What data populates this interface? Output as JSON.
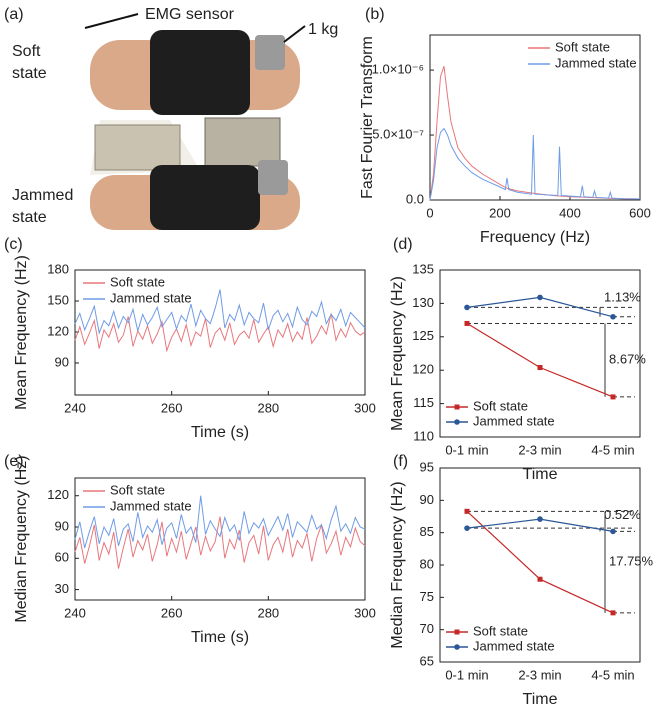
{
  "panel_a": {
    "label": "(a)",
    "sensor": "EMG sensor",
    "weight": "1 kg",
    "top_state": [
      "Soft",
      "state"
    ],
    "bottom_state": [
      "Jammed",
      "state"
    ]
  },
  "chart_data": [
    {
      "type": "line",
      "label": "(b)",
      "x_label": "Frequency (Hz)",
      "y_label": "Fast Fourier Transform",
      "xlim": [
        0,
        600
      ],
      "xticks": [
        0,
        200,
        400,
        600
      ],
      "ylim": [
        0,
        1.27e-06
      ],
      "yticks": [
        {
          "value": 0,
          "label": "0.0"
        },
        {
          "value": 5e-07,
          "label": "5.0×10⁻⁷"
        },
        {
          "value": 1e-06,
          "label": "1.0×10⁻⁶"
        }
      ],
      "legend": "upper right",
      "series": [
        {
          "name": "Soft state",
          "color": "#e8777c",
          "x": [
            0,
            10,
            20,
            30,
            40,
            50,
            60,
            80,
            100,
            120,
            150,
            200,
            220,
            250,
            300,
            350,
            400,
            450,
            500,
            550,
            600
          ],
          "values": [
            0,
            2e-07,
            6e-07,
            9.5e-07,
            1.03e-06,
            8e-07,
            6e-07,
            4e-07,
            3.2e-07,
            2.6e-07,
            2e-07,
            1.2e-07,
            9e-08,
            7e-08,
            5e-08,
            3.5e-08,
            2.5e-08,
            2e-08,
            1.5e-08,
            1e-08,
            8e-09
          ]
        },
        {
          "name": "Jammed state",
          "color": "#6f9ce6",
          "x": [
            0,
            10,
            20,
            30,
            40,
            50,
            60,
            80,
            100,
            120,
            150,
            200,
            215,
            220,
            225,
            250,
            290,
            295,
            300,
            365,
            370,
            375,
            430,
            435,
            440,
            465,
            470,
            475,
            510,
            515,
            520,
            550,
            600
          ],
          "values": [
            0,
            1.5e-07,
            4e-07,
            5.2e-07,
            5.5e-07,
            5e-07,
            4.2e-07,
            3.2e-07,
            2.6e-07,
            2.1e-07,
            1.6e-07,
            1e-07,
            8e-08,
            1.7e-07,
            8e-08,
            6e-08,
            4.5e-08,
            5e-07,
            4.5e-08,
            3.5e-08,
            4.1e-07,
            3.5e-08,
            2.5e-08,
            1.1e-07,
            2.5e-08,
            2e-08,
            7e-08,
            2e-08,
            1.5e-08,
            6e-08,
            1.5e-08,
            1e-08,
            8e-09
          ]
        }
      ]
    },
    {
      "type": "line",
      "label": "(c)",
      "x_label": "Time (s)",
      "y_label": "Mean Frequency (Hz)",
      "xlim": [
        240,
        300
      ],
      "xticks": [
        240,
        260,
        280,
        300
      ],
      "ylim": [
        59,
        180
      ],
      "yticks": [
        90,
        120,
        150,
        180
      ],
      "legend": "upper left",
      "x": [
        240,
        241,
        242,
        243,
        244,
        245,
        246,
        247,
        248,
        249,
        250,
        251,
        252,
        253,
        254,
        255,
        256,
        257,
        258,
        259,
        260,
        261,
        262,
        263,
        264,
        265,
        266,
        267,
        268,
        269,
        270,
        271,
        272,
        273,
        274,
        275,
        276,
        277,
        278,
        279,
        280,
        281,
        282,
        283,
        284,
        285,
        286,
        287,
        288,
        289,
        290,
        291,
        292,
        293,
        294,
        295,
        296,
        297,
        298,
        299,
        300
      ],
      "series": [
        {
          "name": "Soft state",
          "color": "#e8777c",
          "values": [
            112,
            125,
            108,
            119,
            131,
            104,
            122,
            115,
            128,
            110,
            117,
            135,
            106,
            121,
            113,
            126,
            109,
            118,
            130,
            102,
            115,
            123,
            111,
            127,
            107,
            120,
            116,
            133,
            105,
            119,
            124,
            112,
            129,
            108,
            117,
            121,
            114,
            132,
            110,
            118,
            125,
            106,
            122,
            115,
            128,
            111,
            120,
            113,
            134,
            109,
            116,
            126,
            118,
            138,
            112,
            123,
            115,
            129,
            121,
            117,
            120
          ]
        },
        {
          "name": "Jammed state",
          "color": "#6f9ce6",
          "values": [
            128,
            138,
            122,
            133,
            145,
            119,
            131,
            126,
            140,
            124,
            135,
            129,
            142,
            121,
            137,
            127,
            134,
            144,
            125,
            132,
            139,
            123,
            136,
            130,
            147,
            126,
            141,
            133,
            128,
            143,
            161,
            124,
            137,
            131,
            146,
            127,
            139,
            133,
            129,
            148,
            122,
            136,
            141,
            130,
            138,
            125,
            144,
            132,
            127,
            140,
            135,
            149,
            128,
            137,
            131,
            142,
            126,
            139,
            134,
            129,
            124
          ]
        }
      ]
    },
    {
      "type": "line",
      "label": "(d)",
      "x_label": "Time",
      "y_label": "Mean Frequency (Hz)",
      "categories": [
        "0-1 min",
        "2-3 min",
        "4-5 min"
      ],
      "ylim": [
        110,
        135
      ],
      "yticks": [
        110,
        115,
        120,
        125,
        130,
        135
      ],
      "legend": "lower left",
      "annotations": [
        "1.13%",
        "8.67%"
      ],
      "series": [
        {
          "name": "Soft state",
          "color": "#c62828",
          "marker": "square",
          "values": [
            127,
            120.4,
            116
          ]
        },
        {
          "name": "Jammed state",
          "color": "#2b5797",
          "marker": "circle",
          "values": [
            129.4,
            130.9,
            128
          ]
        }
      ]
    },
    {
      "type": "line",
      "label": "(e)",
      "x_label": "Time (s)",
      "y_label": "Median Frequency (Hz)",
      "xlim": [
        240,
        300
      ],
      "xticks": [
        240,
        260,
        280,
        300
      ],
      "ylim": [
        20,
        137
      ],
      "yticks": [
        30,
        60,
        90,
        120
      ],
      "legend": "upper left",
      "x": [
        240,
        241,
        242,
        243,
        244,
        245,
        246,
        247,
        248,
        249,
        250,
        251,
        252,
        253,
        254,
        255,
        256,
        257,
        258,
        259,
        260,
        261,
        262,
        263,
        264,
        265,
        266,
        267,
        268,
        269,
        270,
        271,
        272,
        273,
        274,
        275,
        276,
        277,
        278,
        279,
        280,
        281,
        282,
        283,
        284,
        285,
        286,
        287,
        288,
        289,
        290,
        291,
        292,
        293,
        294,
        295,
        296,
        297,
        298,
        299,
        300
      ],
      "series": [
        {
          "name": "Soft state",
          "color": "#e8777c",
          "values": [
            66,
            80,
            55,
            72,
            92,
            58,
            75,
            64,
            85,
            50,
            70,
            88,
            61,
            77,
            68,
            83,
            57,
            73,
            95,
            62,
            79,
            66,
            86,
            59,
            74,
            90,
            63,
            81,
            67,
            76,
            100,
            60,
            78,
            69,
            87,
            56,
            75,
            82,
            64,
            91,
            58,
            73,
            80,
            66,
            88,
            61,
            77,
            70,
            84,
            57,
            79,
            92,
            65,
            74,
            86,
            63,
            80,
            71,
            89,
            76,
            72
          ]
        },
        {
          "name": "Jammed state",
          "color": "#6f9ce6",
          "values": [
            78,
            95,
            70,
            86,
            100,
            74,
            90,
            82,
            98,
            72,
            88,
            93,
            76,
            104,
            80,
            91,
            85,
            97,
            73,
            89,
            94,
            79,
            102,
            84,
            90,
            75,
            120,
            83,
            96,
            88,
            81,
            99,
            86,
            92,
            77,
            105,
            84,
            94,
            89,
            98,
            82,
            91,
            100,
            87,
            103,
            80,
            95,
            90,
            85,
            101,
            88,
            92,
            79,
            97,
            110,
            86,
            93,
            84,
            99,
            90,
            88
          ]
        }
      ]
    },
    {
      "type": "line",
      "label": "(f)",
      "x_label": "Time",
      "y_label": "Median Frequency (Hz)",
      "categories": [
        "0-1 min",
        "2-3 min",
        "4-5 min"
      ],
      "ylim": [
        65,
        95
      ],
      "yticks": [
        65,
        70,
        75,
        80,
        85,
        90,
        95
      ],
      "legend": "lower left",
      "annotations": [
        "0.52%",
        "17.75%"
      ],
      "series": [
        {
          "name": "Soft state",
          "color": "#c62828",
          "marker": "square",
          "values": [
            88.3,
            77.8,
            72.6
          ]
        },
        {
          "name": "Jammed state",
          "color": "#2b5797",
          "marker": "circle",
          "values": [
            85.7,
            87.1,
            85.2
          ]
        }
      ]
    }
  ]
}
